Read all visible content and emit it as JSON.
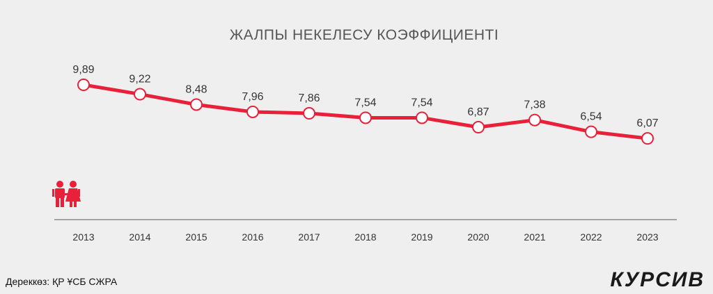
{
  "chart_data": {
    "type": "line",
    "title": "ЖАЛПЫ НЕКЕЛЕСУ КОЭФФИЦИЕНТІ",
    "categories": [
      "2013",
      "2014",
      "2015",
      "2016",
      "2017",
      "2018",
      "2019",
      "2020",
      "2021",
      "2022",
      "2023"
    ],
    "values": [
      9.89,
      9.22,
      8.48,
      7.96,
      7.86,
      7.54,
      7.54,
      6.87,
      7.38,
      6.54,
      6.07
    ],
    "value_labels": [
      "9,89",
      "9,22",
      "8,48",
      "7,96",
      "7,86",
      "7,54",
      "7,54",
      "6,87",
      "7,38",
      "6,54",
      "6,07"
    ],
    "grid": false,
    "legend": "none",
    "line_color": "#e8203a",
    "marker_fill": "#ffffff"
  },
  "source": "Дереккөз: ҚР ҰСБ СЖРА",
  "brand": "КУРСИВ",
  "icon": "couple-icon",
  "colors": {
    "background": "#efefef",
    "accent": "#e8203a",
    "text": "#333333"
  }
}
